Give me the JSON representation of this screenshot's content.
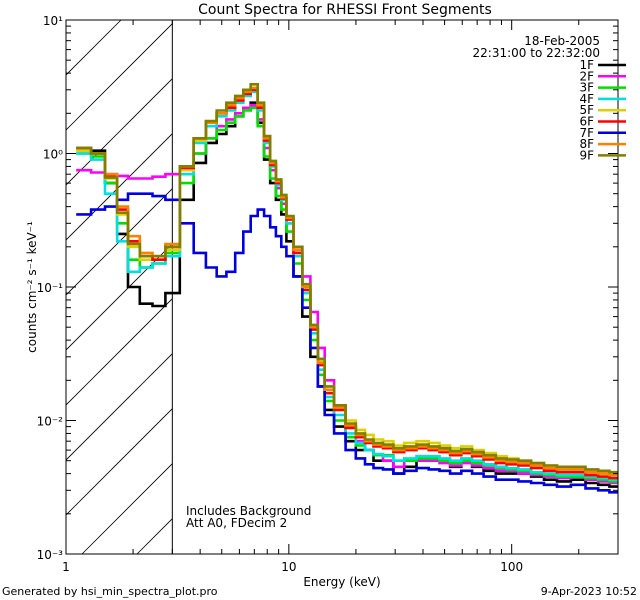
{
  "chart_data": {
    "type": "line",
    "title": "Count Spectra for RHESSI Front Segments",
    "date": "18-Feb-2005",
    "time_range": "22:31:00 to 22:32:00",
    "xlabel": "Energy (keV)",
    "ylabel": "counts cm⁻² s⁻¹ keV⁻¹",
    "xscale": "log",
    "yscale": "log",
    "xlim": [
      1,
      300
    ],
    "ylim": [
      0.001,
      10
    ],
    "x_ticks": [
      {
        "value": 1,
        "label": "1"
      },
      {
        "value": 10,
        "label": "10"
      },
      {
        "value": 100,
        "label": "100"
      }
    ],
    "y_ticks": [
      {
        "value": 10,
        "label": "10¹"
      },
      {
        "value": 1,
        "label": "10⁰"
      },
      {
        "value": 0.1,
        "label": "10⁻¹"
      },
      {
        "value": 0.01,
        "label": "10⁻²"
      },
      {
        "value": 0.001,
        "label": "10⁻³"
      }
    ],
    "hatched_region": {
      "x_from": 1,
      "x_to": 3
    },
    "annotations": [
      "Includes Background",
      "Att A0, FDecim 2"
    ],
    "legend_position": "top-right",
    "energy_bins": [
      1.2,
      1.4,
      1.6,
      1.8,
      2.0,
      2.3,
      2.6,
      3.0,
      3.5,
      4.0,
      4.5,
      5.0,
      5.5,
      6.0,
      6.5,
      7.0,
      7.5,
      8.0,
      8.5,
      9.0,
      9.5,
      10,
      11,
      12,
      13,
      14,
      15,
      17,
      19,
      21,
      23,
      25,
      28,
      31,
      35,
      40,
      45,
      50,
      56,
      63,
      70,
      80,
      90,
      100,
      115,
      130,
      150,
      170,
      200,
      230,
      260,
      290
    ],
    "series": [
      {
        "name": "1F",
        "color": "#000000",
        "values": [
          1.1,
          1.05,
          0.6,
          0.25,
          0.1,
          0.075,
          0.072,
          0.09,
          0.45,
          0.85,
          1.2,
          1.4,
          1.6,
          1.9,
          2.2,
          2.4,
          1.7,
          0.9,
          0.6,
          0.45,
          0.35,
          0.22,
          0.12,
          0.06,
          0.03,
          0.018,
          0.012,
          0.009,
          0.007,
          0.006,
          0.006,
          0.005,
          0.005,
          0.004,
          0.0045,
          0.005,
          0.005,
          0.005,
          0.0045,
          0.005,
          0.0045,
          0.0042,
          0.004,
          0.004,
          0.004,
          0.0038,
          0.0036,
          0.0035,
          0.0036,
          0.0034,
          0.0033,
          0.0032
        ]
      },
      {
        "name": "2F",
        "color": "#ff00ff",
        "values": [
          0.75,
          0.72,
          0.7,
          0.68,
          0.65,
          0.65,
          0.67,
          0.7,
          0.8,
          1.0,
          1.3,
          1.6,
          1.8,
          2.0,
          2.2,
          2.3,
          1.8,
          1.1,
          0.75,
          0.55,
          0.42,
          0.3,
          0.2,
          0.12,
          0.065,
          0.035,
          0.02,
          0.013,
          0.009,
          0.007,
          0.006,
          0.0055,
          0.005,
          0.0045,
          0.005,
          0.005,
          0.005,
          0.0048,
          0.0046,
          0.0048,
          0.0046,
          0.0044,
          0.0042,
          0.0042,
          0.004,
          0.0039,
          0.0038,
          0.0037,
          0.0038,
          0.0036,
          0.0035,
          0.0034
        ]
      },
      {
        "name": "3F",
        "color": "#00e000",
        "values": [
          1.0,
          0.95,
          0.6,
          0.3,
          0.16,
          0.14,
          0.15,
          0.18,
          0.6,
          1.0,
          1.3,
          1.5,
          1.7,
          1.9,
          2.1,
          2.2,
          1.6,
          0.95,
          0.65,
          0.48,
          0.38,
          0.26,
          0.15,
          0.08,
          0.04,
          0.022,
          0.014,
          0.01,
          0.0075,
          0.0065,
          0.006,
          0.0055,
          0.0055,
          0.005,
          0.005,
          0.0052,
          0.0052,
          0.005,
          0.0048,
          0.005,
          0.0048,
          0.0046,
          0.0044,
          0.0043,
          0.0042,
          0.004,
          0.0039,
          0.0038,
          0.0038,
          0.0037,
          0.0036,
          0.0035
        ]
      },
      {
        "name": "4F",
        "color": "#00e0e0",
        "values": [
          1.0,
          0.9,
          0.5,
          0.22,
          0.13,
          0.14,
          0.15,
          0.17,
          0.7,
          1.2,
          1.6,
          1.9,
          2.1,
          2.4,
          2.7,
          2.9,
          2.1,
          1.2,
          0.8,
          0.58,
          0.45,
          0.3,
          0.17,
          0.09,
          0.045,
          0.024,
          0.015,
          0.011,
          0.008,
          0.0068,
          0.006,
          0.0056,
          0.0054,
          0.005,
          0.0052,
          0.0054,
          0.0054,
          0.0052,
          0.005,
          0.0052,
          0.005,
          0.0047,
          0.0045,
          0.0044,
          0.0043,
          0.0041,
          0.004,
          0.0039,
          0.0039,
          0.0038,
          0.0037,
          0.0036
        ]
      },
      {
        "name": "5F",
        "color": "#e0d000",
        "values": [
          1.05,
          1.0,
          0.65,
          0.35,
          0.2,
          0.16,
          0.16,
          0.19,
          0.75,
          1.25,
          1.7,
          2.0,
          2.3,
          2.6,
          2.9,
          3.1,
          2.3,
          1.3,
          0.85,
          0.62,
          0.48,
          0.33,
          0.19,
          0.1,
          0.05,
          0.028,
          0.018,
          0.013,
          0.01,
          0.0085,
          0.0078,
          0.0072,
          0.007,
          0.0065,
          0.0068,
          0.007,
          0.0068,
          0.0065,
          0.0062,
          0.0064,
          0.006,
          0.0057,
          0.0054,
          0.0052,
          0.005,
          0.0048,
          0.0046,
          0.0045,
          0.0044,
          0.0042,
          0.0041,
          0.004
        ]
      },
      {
        "name": "6F",
        "color": "#ff0000",
        "values": [
          1.1,
          1.0,
          0.68,
          0.38,
          0.22,
          0.17,
          0.16,
          0.2,
          0.78,
          1.3,
          1.7,
          2.0,
          2.2,
          2.5,
          2.8,
          3.0,
          2.2,
          1.25,
          0.82,
          0.6,
          0.46,
          0.32,
          0.18,
          0.095,
          0.048,
          0.026,
          0.016,
          0.012,
          0.0088,
          0.0075,
          0.0068,
          0.0064,
          0.0062,
          0.0058,
          0.006,
          0.0062,
          0.006,
          0.0058,
          0.0055,
          0.0057,
          0.0054,
          0.0051,
          0.0048,
          0.0047,
          0.0046,
          0.0044,
          0.0042,
          0.0041,
          0.0041,
          0.0039,
          0.0038,
          0.0037
        ]
      },
      {
        "name": "7F",
        "color": "#0000e0",
        "values": [
          0.35,
          0.38,
          0.4,
          0.45,
          0.5,
          0.5,
          0.48,
          0.45,
          0.3,
          0.18,
          0.14,
          0.12,
          0.13,
          0.18,
          0.26,
          0.34,
          0.38,
          0.34,
          0.28,
          0.24,
          0.2,
          0.17,
          0.12,
          0.07,
          0.035,
          0.018,
          0.011,
          0.008,
          0.006,
          0.0052,
          0.0047,
          0.0044,
          0.0043,
          0.004,
          0.0042,
          0.0044,
          0.0043,
          0.0042,
          0.004,
          0.0042,
          0.004,
          0.0038,
          0.0036,
          0.0036,
          0.0035,
          0.0034,
          0.0033,
          0.0032,
          0.0033,
          0.0031,
          0.003,
          0.0029
        ]
      },
      {
        "name": "8F",
        "color": "#ff8000",
        "values": [
          1.1,
          1.0,
          0.7,
          0.4,
          0.24,
          0.18,
          0.17,
          0.21,
          0.8,
          1.3,
          1.7,
          2.0,
          2.3,
          2.6,
          2.9,
          3.1,
          2.3,
          1.3,
          0.85,
          0.62,
          0.47,
          0.33,
          0.19,
          0.1,
          0.05,
          0.027,
          0.017,
          0.0125,
          0.0092,
          0.0078,
          0.007,
          0.0066,
          0.0064,
          0.006,
          0.0062,
          0.0064,
          0.0062,
          0.006,
          0.0057,
          0.0059,
          0.0056,
          0.0053,
          0.005,
          0.0049,
          0.0048,
          0.0046,
          0.0044,
          0.0043,
          0.0043,
          0.0041,
          0.004,
          0.0039
        ]
      },
      {
        "name": "9F",
        "color": "#808000",
        "values": [
          1.1,
          1.0,
          0.66,
          0.36,
          0.21,
          0.17,
          0.17,
          0.2,
          0.8,
          1.3,
          1.75,
          2.1,
          2.4,
          2.7,
          3.0,
          3.3,
          2.4,
          1.35,
          0.88,
          0.64,
          0.49,
          0.34,
          0.2,
          0.105,
          0.052,
          0.029,
          0.018,
          0.013,
          0.0095,
          0.008,
          0.0072,
          0.0068,
          0.0066,
          0.0062,
          0.0064,
          0.0066,
          0.0064,
          0.0062,
          0.0059,
          0.0061,
          0.0058,
          0.0055,
          0.0052,
          0.0051,
          0.005,
          0.0048,
          0.0046,
          0.0045,
          0.0045,
          0.0043,
          0.0042,
          0.0041
        ]
      }
    ]
  },
  "footer": {
    "left": "Generated by hsi_min_spectra_plot.pro",
    "right": "9-Apr-2023 10:52"
  }
}
